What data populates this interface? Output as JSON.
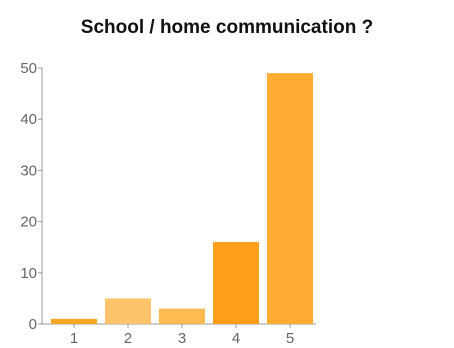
{
  "chart_data": {
    "type": "bar",
    "title": "School / home communication ?",
    "xlabel": "",
    "ylabel": "",
    "categories": [
      "1",
      "2",
      "3",
      "4",
      "5"
    ],
    "values": [
      1,
      5,
      3,
      16,
      49
    ],
    "ylim": [
      0,
      50
    ],
    "yticks": [
      "0",
      "10",
      "20",
      "30",
      "40",
      "50"
    ],
    "grid": false,
    "legend": "none",
    "colors": [
      "#f5a623",
      "#ffc46b",
      "#ffba52",
      "#ff9e1a",
      "#ffad33"
    ]
  }
}
